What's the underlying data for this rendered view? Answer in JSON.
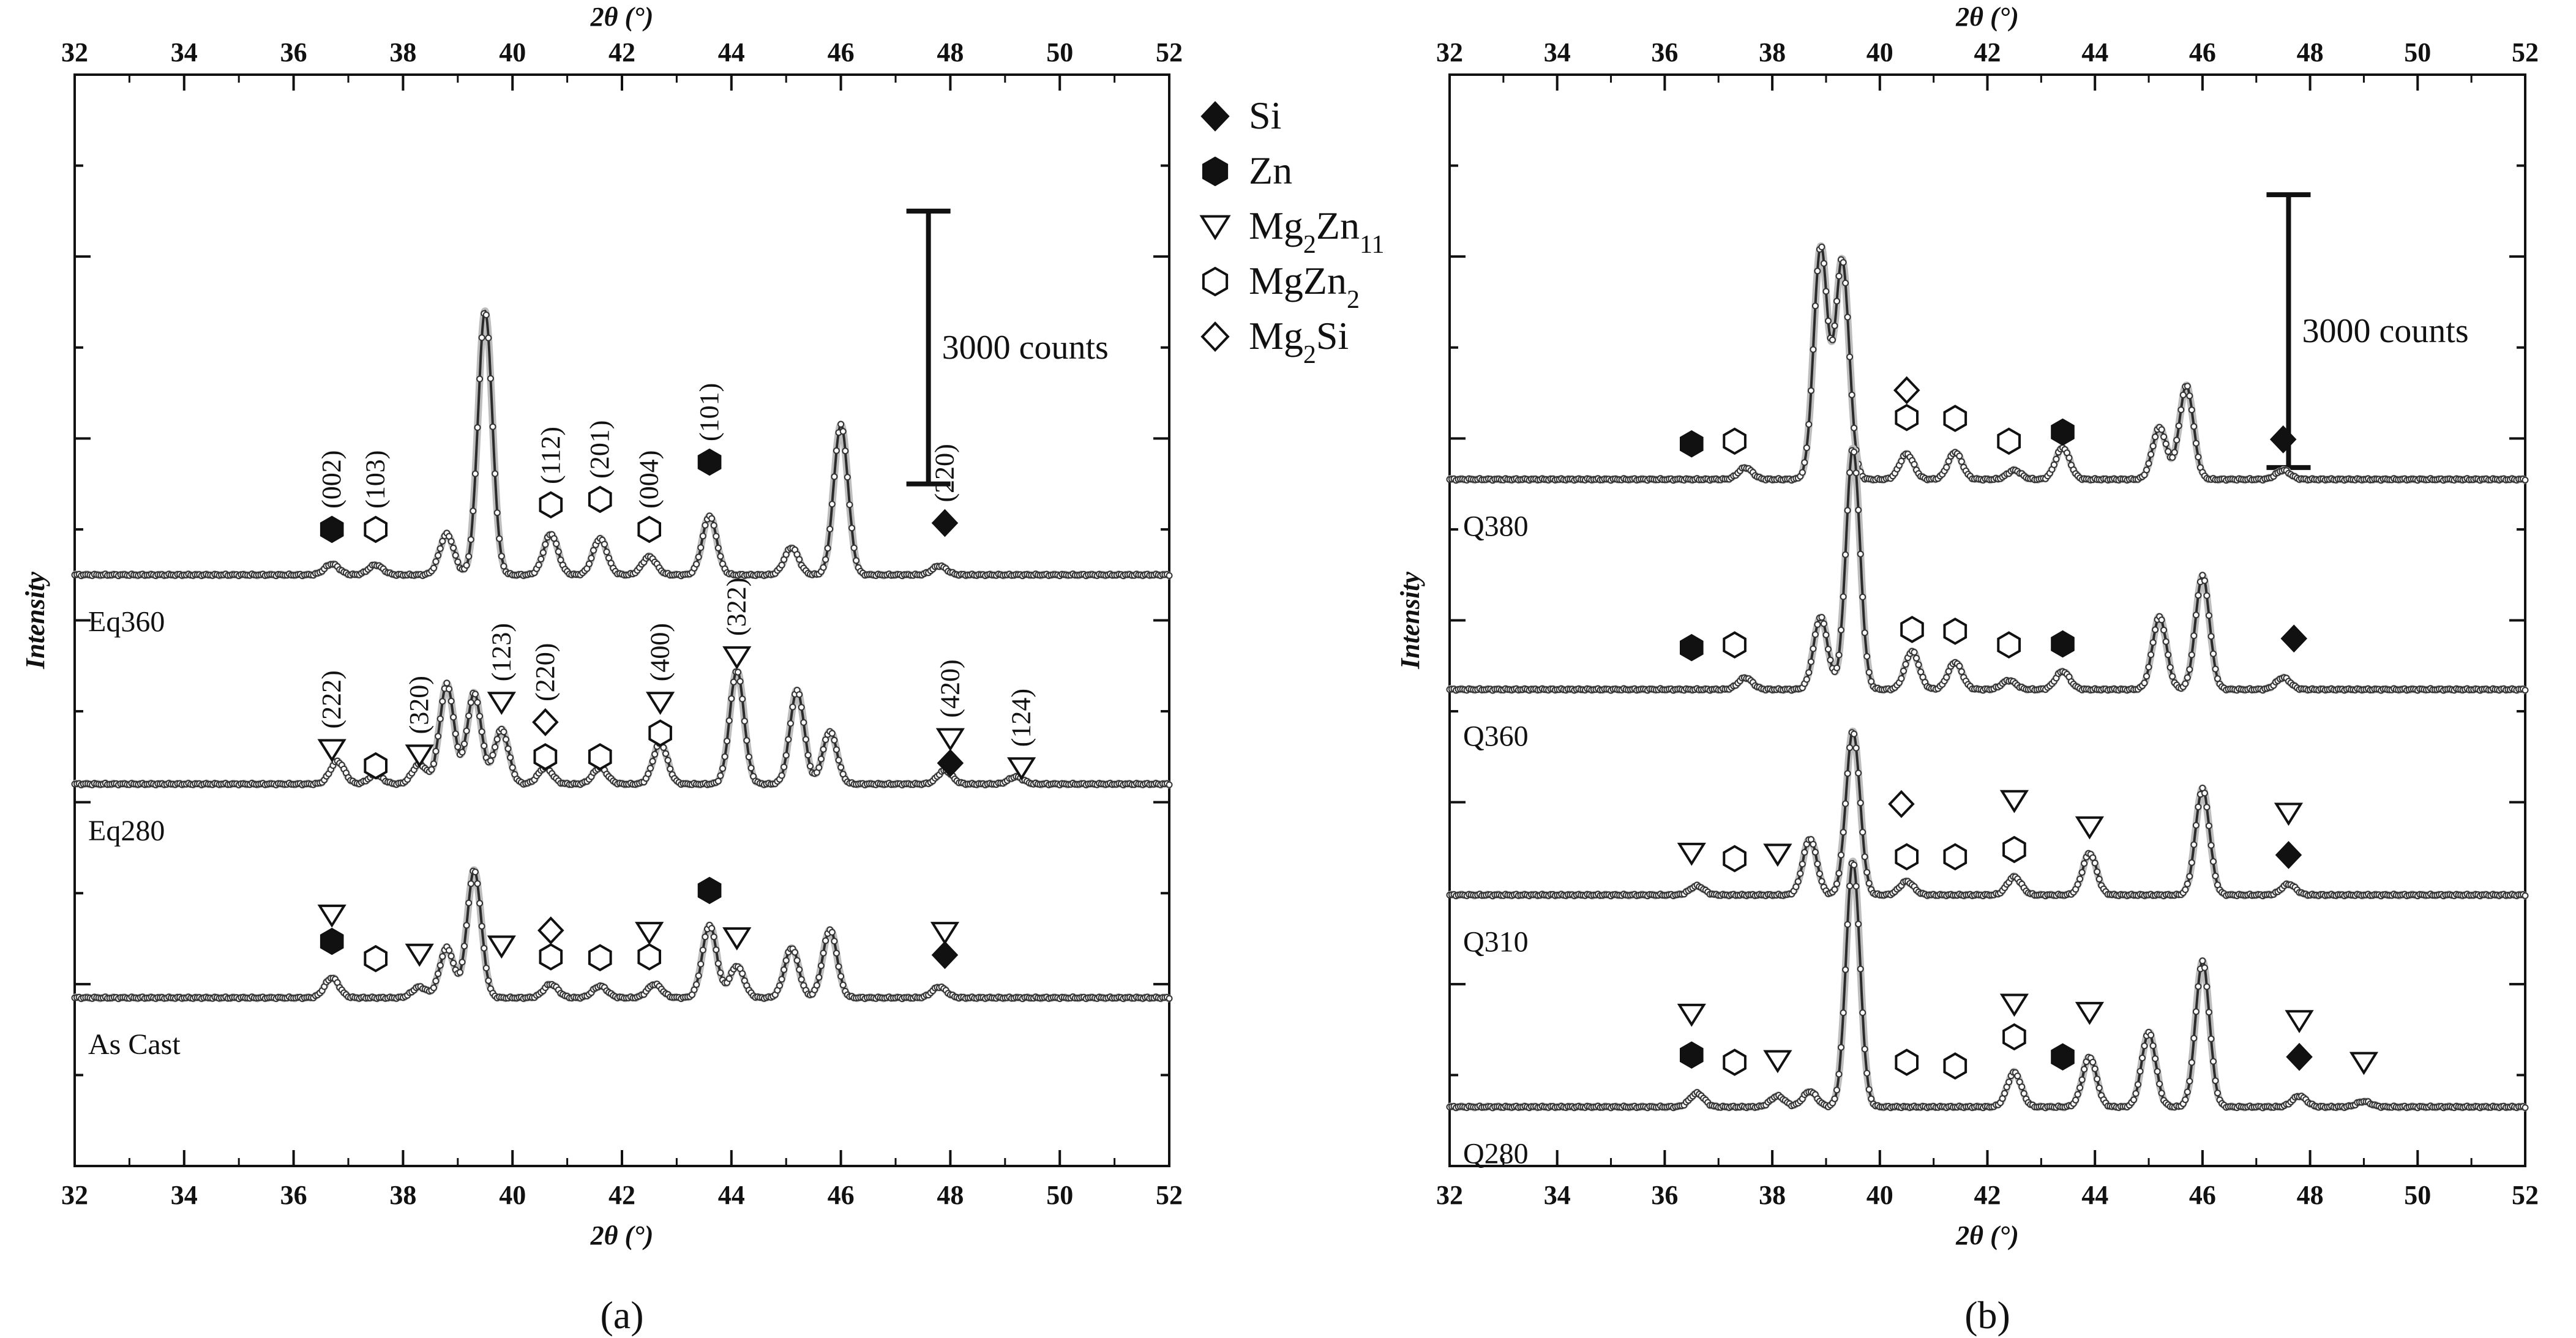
{
  "figure": {
    "legend": [
      {
        "marker": "diamond-filled",
        "label": "Si",
        "base": "Si",
        "sub": ""
      },
      {
        "marker": "hexagon-filled",
        "label": "Zn",
        "base": "Zn",
        "sub": ""
      },
      {
        "marker": "triangle-down-open",
        "label": "Mg2Zn11",
        "base": "Mg",
        "sub": "2",
        "base2": "Zn",
        "sub2": "11"
      },
      {
        "marker": "hexagon-open",
        "label": "MgZn2",
        "base": "MgZn",
        "sub": "2"
      },
      {
        "marker": "diamond-open",
        "label": "Mg2Si",
        "base": "Mg",
        "sub": "2",
        "base2": "Si",
        "sub2": ""
      }
    ]
  },
  "chart_data": [
    {
      "type": "line",
      "panel_label": "(a)",
      "panel_letter": "a",
      "xlabel": "2θ (°)",
      "ylabel": "Intensity",
      "xlim": [
        32,
        52
      ],
      "xticks": [
        32,
        34,
        36,
        38,
        40,
        42,
        44,
        46,
        48,
        50,
        52
      ],
      "y_unit": "counts",
      "ylim": [
        0,
        12000
      ],
      "y_tick_spacing": 1000,
      "scale_bar": {
        "label": "3000 counts",
        "value": 3000,
        "x": 47.6,
        "y_center": 9000
      },
      "series": [
        {
          "name": "Eq360",
          "baseline": 6500,
          "peaks": [
            [
              36.7,
              120
            ],
            [
              37.5,
              110
            ],
            [
              38.8,
              450
            ],
            [
              39.5,
              2900
            ],
            [
              40.7,
              450
            ],
            [
              41.6,
              400
            ],
            [
              42.5,
              200
            ],
            [
              43.6,
              650
            ],
            [
              45.1,
              300
            ],
            [
              46.0,
              1650
            ],
            [
              47.8,
              100
            ]
          ],
          "annotations": [
            {
              "marker": "hexagon-filled",
              "x": 36.7,
              "y": 7000,
              "label": "(002)"
            },
            {
              "marker": "hexagon-open",
              "x": 37.5,
              "y": 7000,
              "label": "(103)"
            },
            {
              "marker": "hexagon-open",
              "x": 40.7,
              "y": 7270,
              "label": "(112)"
            },
            {
              "marker": "hexagon-open",
              "x": 41.6,
              "y": 7330,
              "label": "(201)"
            },
            {
              "marker": "hexagon-open",
              "x": 42.5,
              "y": 7000,
              "label": "(004)"
            },
            {
              "marker": "hexagon-filled",
              "x": 43.6,
              "y": 7740,
              "label": "(101)"
            },
            {
              "marker": "diamond-filled",
              "x": 47.9,
              "y": 7070,
              "label": "(220)"
            }
          ]
        },
        {
          "name": "Eq280",
          "baseline": 4200,
          "peaks": [
            [
              36.8,
              250
            ],
            [
              37.5,
              100
            ],
            [
              38.3,
              220
            ],
            [
              38.8,
              1100
            ],
            [
              39.3,
              1000
            ],
            [
              39.8,
              600
            ],
            [
              40.6,
              180
            ],
            [
              41.6,
              180
            ],
            [
              42.7,
              450
            ],
            [
              44.1,
              1250
            ],
            [
              45.2,
              1030
            ],
            [
              45.8,
              580
            ],
            [
              47.9,
              150
            ],
            [
              49.2,
              80
            ]
          ],
          "annotations": [
            {
              "marker": "triangle-down-open",
              "x": 36.7,
              "y": 4580,
              "label": "(222)"
            },
            {
              "marker": "hexagon-open",
              "x": 37.5,
              "y": 4400,
              "label": ""
            },
            {
              "marker": "triangle-down-open",
              "x": 38.3,
              "y": 4520,
              "label": "(320)"
            },
            {
              "marker": "triangle-down-open",
              "x": 39.8,
              "y": 5100,
              "label": "(123)"
            },
            {
              "marker": "diamond-open",
              "x": 40.6,
              "y": 4880,
              "label": "(220)"
            },
            {
              "marker": "hexagon-open",
              "x": 40.6,
              "y": 4500,
              "label": ""
            },
            {
              "marker": "hexagon-open",
              "x": 41.6,
              "y": 4500,
              "label": ""
            },
            {
              "marker": "triangle-down-open",
              "x": 42.7,
              "y": 5100,
              "label": "(400)"
            },
            {
              "marker": "hexagon-open",
              "x": 42.7,
              "y": 4760,
              "label": ""
            },
            {
              "marker": "triangle-down-open",
              "x": 44.1,
              "y": 5600,
              "label": "(322)"
            },
            {
              "marker": "triangle-down-open",
              "x": 48.0,
              "y": 4700,
              "label": "(420)"
            },
            {
              "marker": "diamond-filled",
              "x": 48.0,
              "y": 4430,
              "label": ""
            },
            {
              "marker": "triangle-down-open",
              "x": 49.3,
              "y": 4380,
              "label": "(124)"
            }
          ]
        },
        {
          "name": "As Cast",
          "baseline": 1850,
          "peaks": [
            [
              36.7,
              220
            ],
            [
              38.3,
              120
            ],
            [
              38.8,
              550
            ],
            [
              39.3,
              1400
            ],
            [
              40.7,
              150
            ],
            [
              41.6,
              130
            ],
            [
              42.6,
              150
            ],
            [
              43.6,
              800
            ],
            [
              44.1,
              350
            ],
            [
              45.1,
              550
            ],
            [
              45.8,
              750
            ],
            [
              47.8,
              120
            ]
          ],
          "annotations": [
            {
              "marker": "triangle-down-open",
              "x": 36.7,
              "y": 2760,
              "label": ""
            },
            {
              "marker": "hexagon-filled",
              "x": 36.7,
              "y": 2470,
              "label": ""
            },
            {
              "marker": "hexagon-open",
              "x": 37.5,
              "y": 2280,
              "label": ""
            },
            {
              "marker": "triangle-down-open",
              "x": 38.3,
              "y": 2330,
              "label": ""
            },
            {
              "marker": "triangle-down-open",
              "x": 39.8,
              "y": 2420,
              "label": ""
            },
            {
              "marker": "diamond-open",
              "x": 40.7,
              "y": 2590,
              "label": ""
            },
            {
              "marker": "hexagon-open",
              "x": 40.7,
              "y": 2300,
              "label": ""
            },
            {
              "marker": "hexagon-open",
              "x": 41.6,
              "y": 2290,
              "label": ""
            },
            {
              "marker": "triangle-down-open",
              "x": 42.5,
              "y": 2570,
              "label": ""
            },
            {
              "marker": "hexagon-open",
              "x": 42.5,
              "y": 2300,
              "label": ""
            },
            {
              "marker": "hexagon-filled",
              "x": 43.6,
              "y": 3030,
              "label": ""
            },
            {
              "marker": "triangle-down-open",
              "x": 44.1,
              "y": 2510,
              "label": ""
            },
            {
              "marker": "triangle-down-open",
              "x": 47.9,
              "y": 2570,
              "label": ""
            },
            {
              "marker": "diamond-filled",
              "x": 47.9,
              "y": 2320,
              "label": ""
            }
          ]
        }
      ]
    },
    {
      "type": "line",
      "panel_label": "(b)",
      "panel_letter": "b",
      "xlabel": "2θ (°)",
      "ylabel": "Intensity",
      "xlim": [
        32,
        52
      ],
      "xticks": [
        32,
        34,
        36,
        38,
        40,
        42,
        44,
        46,
        48,
        50,
        52
      ],
      "y_unit": "counts",
      "ylim": [
        0,
        12000
      ],
      "y_tick_spacing": 1000,
      "scale_bar": {
        "label": "3000 counts",
        "value": 3000,
        "x": 47.6,
        "y_center": 9180
      },
      "series": [
        {
          "name": "Q380",
          "baseline": 7550,
          "peaks": [
            [
              37.5,
              130
            ],
            [
              38.9,
              2550
            ],
            [
              39.3,
              2400
            ],
            [
              40.5,
              280
            ],
            [
              41.4,
              300
            ],
            [
              42.5,
              100
            ],
            [
              43.4,
              350
            ],
            [
              45.2,
              570
            ],
            [
              45.7,
              1030
            ],
            [
              47.5,
              100
            ]
          ],
          "annotations": [
            {
              "marker": "hexagon-filled",
              "x": 36.5,
              "y": 7940,
              "label": ""
            },
            {
              "marker": "hexagon-open",
              "x": 37.3,
              "y": 7970,
              "label": ""
            },
            {
              "marker": "diamond-open",
              "x": 40.5,
              "y": 8530,
              "label": ""
            },
            {
              "marker": "hexagon-open",
              "x": 40.5,
              "y": 8230,
              "label": ""
            },
            {
              "marker": "hexagon-open",
              "x": 41.4,
              "y": 8220,
              "label": ""
            },
            {
              "marker": "hexagon-open",
              "x": 42.4,
              "y": 7970,
              "label": ""
            },
            {
              "marker": "hexagon-filled",
              "x": 43.4,
              "y": 8070,
              "label": ""
            },
            {
              "marker": "diamond-filled",
              "x": 47.5,
              "y": 7990,
              "label": ""
            }
          ]
        },
        {
          "name": "Q360",
          "baseline": 5240,
          "peaks": [
            [
              37.5,
              130
            ],
            [
              38.9,
              800
            ],
            [
              39.5,
              2650
            ],
            [
              40.6,
              420
            ],
            [
              41.4,
              300
            ],
            [
              42.4,
              100
            ],
            [
              43.4,
              200
            ],
            [
              45.2,
              800
            ],
            [
              46.0,
              1250
            ],
            [
              47.5,
              130
            ]
          ],
          "annotations": [
            {
              "marker": "hexagon-filled",
              "x": 36.5,
              "y": 5700,
              "label": ""
            },
            {
              "marker": "hexagon-open",
              "x": 37.3,
              "y": 5730,
              "label": ""
            },
            {
              "marker": "hexagon-open",
              "x": 40.6,
              "y": 5900,
              "label": ""
            },
            {
              "marker": "hexagon-open",
              "x": 41.4,
              "y": 5880,
              "label": ""
            },
            {
              "marker": "hexagon-open",
              "x": 42.4,
              "y": 5730,
              "label": ""
            },
            {
              "marker": "hexagon-filled",
              "x": 43.4,
              "y": 5740,
              "label": ""
            },
            {
              "marker": "diamond-filled",
              "x": 47.7,
              "y": 5800,
              "label": ""
            }
          ]
        },
        {
          "name": "Q310",
          "baseline": 2980,
          "peaks": [
            [
              36.6,
              100
            ],
            [
              38.7,
              620
            ],
            [
              39.5,
              1800
            ],
            [
              40.5,
              150
            ],
            [
              42.5,
              200
            ],
            [
              43.9,
              460
            ],
            [
              46.0,
              1170
            ],
            [
              47.6,
              120
            ]
          ],
          "annotations": [
            {
              "marker": "triangle-down-open",
              "x": 36.5,
              "y": 3440,
              "label": ""
            },
            {
              "marker": "hexagon-open",
              "x": 37.3,
              "y": 3380,
              "label": ""
            },
            {
              "marker": "triangle-down-open",
              "x": 38.1,
              "y": 3430,
              "label": ""
            },
            {
              "marker": "diamond-open",
              "x": 40.4,
              "y": 3980,
              "label": ""
            },
            {
              "marker": "hexagon-open",
              "x": 40.5,
              "y": 3400,
              "label": ""
            },
            {
              "marker": "hexagon-open",
              "x": 41.4,
              "y": 3400,
              "label": ""
            },
            {
              "marker": "triangle-down-open",
              "x": 42.5,
              "y": 4020,
              "label": ""
            },
            {
              "marker": "hexagon-open",
              "x": 42.5,
              "y": 3480,
              "label": ""
            },
            {
              "marker": "triangle-down-open",
              "x": 43.9,
              "y": 3730,
              "label": ""
            },
            {
              "marker": "triangle-down-open",
              "x": 47.6,
              "y": 3880,
              "label": ""
            },
            {
              "marker": "diamond-filled",
              "x": 47.6,
              "y": 3420,
              "label": ""
            }
          ]
        },
        {
          "name": "Q280",
          "baseline": 650,
          "peaks": [
            [
              36.6,
              150
            ],
            [
              38.1,
              120
            ],
            [
              38.7,
              170
            ],
            [
              39.5,
              2700
            ],
            [
              42.5,
              380
            ],
            [
              43.9,
              550
            ],
            [
              45.0,
              820
            ],
            [
              46.0,
              1600
            ],
            [
              47.8,
              120
            ],
            [
              49.0,
              60
            ]
          ],
          "annotations": [
            {
              "marker": "triangle-down-open",
              "x": 36.5,
              "y": 1670,
              "label": ""
            },
            {
              "marker": "hexagon-filled",
              "x": 36.5,
              "y": 1220,
              "label": ""
            },
            {
              "marker": "hexagon-open",
              "x": 37.3,
              "y": 1140,
              "label": ""
            },
            {
              "marker": "triangle-down-open",
              "x": 38.1,
              "y": 1160,
              "label": ""
            },
            {
              "marker": "hexagon-open",
              "x": 40.5,
              "y": 1140,
              "label": ""
            },
            {
              "marker": "hexagon-open",
              "x": 41.4,
              "y": 1100,
              "label": ""
            },
            {
              "marker": "triangle-down-open",
              "x": 42.5,
              "y": 1780,
              "label": ""
            },
            {
              "marker": "hexagon-open",
              "x": 42.5,
              "y": 1420,
              "label": ""
            },
            {
              "marker": "hexagon-filled",
              "x": 43.4,
              "y": 1200,
              "label": ""
            },
            {
              "marker": "triangle-down-open",
              "x": 43.9,
              "y": 1690,
              "label": ""
            },
            {
              "marker": "triangle-down-open",
              "x": 47.8,
              "y": 1600,
              "label": ""
            },
            {
              "marker": "diamond-filled",
              "x": 47.8,
              "y": 1200,
              "label": ""
            },
            {
              "marker": "triangle-down-open",
              "x": 49.0,
              "y": 1140,
              "label": ""
            }
          ]
        }
      ]
    }
  ]
}
